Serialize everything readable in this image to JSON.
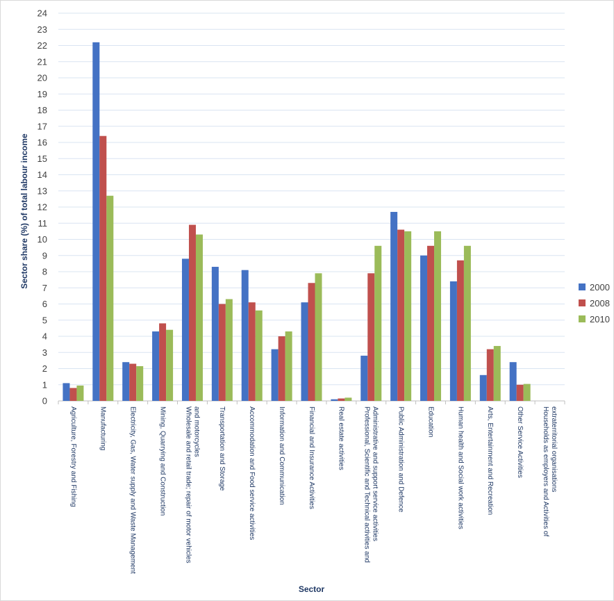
{
  "chart_data": {
    "type": "bar",
    "title": "",
    "xlabel": "Sector",
    "ylabel": "Sector share (%) of total labour income",
    "ylim": [
      0,
      24
    ],
    "yticks": [
      0,
      1,
      2,
      3,
      4,
      5,
      6,
      7,
      8,
      9,
      10,
      11,
      12,
      13,
      14,
      15,
      16,
      17,
      18,
      19,
      20,
      21,
      22,
      23,
      24
    ],
    "grid": true,
    "legend_position": "right",
    "categories": [
      "Agriculture, Forestry and Fishing",
      "Manufacturing",
      "Electricity, Gas, Water supply and Waste Management",
      "Mining, Quarrying and Construction",
      "Wholesale and retail trade; repair of motor vehicles and motorcycles",
      "Transportation and Storage",
      "Accommodation and Food service activities",
      "Information and Communication",
      "Financial and Insurance Activities",
      "Real estate activities",
      "Professional, Scientific and Technical activities and Administrative and support service activities",
      "Public Administration and Defence",
      "Education",
      "Human health and Social work activities",
      "Arts, Entertainment and Recreation",
      "Other Service Activities",
      "Households as employers and Activities of extraterritorial organisations"
    ],
    "category_lines": [
      [
        "Agriculture, Forestry and Fishing"
      ],
      [
        "Manufacturing"
      ],
      [
        "Electricity, Gas, Water supply and Waste Management"
      ],
      [
        "Mining, Quarrying and Construction"
      ],
      [
        "Wholesale and retail trade; repair of motor vehicles",
        "and motorcycles"
      ],
      [
        "Transportation and Storage"
      ],
      [
        "Accommodation and Food service activities"
      ],
      [
        "Information and Communication"
      ],
      [
        "Financial and Insurance Activities"
      ],
      [
        "Real estate activities"
      ],
      [
        "Professional, Scientific and Technical activities and",
        "Administrative and support service activities"
      ],
      [
        "Public Administration and Defence"
      ],
      [
        "Education"
      ],
      [
        "Human health and Social work activities"
      ],
      [
        "Arts, Entertainment and Recreation"
      ],
      [
        "Other Service Activities"
      ],
      [
        "Households as employers and Activities of",
        "extraterritorial organisations"
      ]
    ],
    "series": [
      {
        "name": "2000",
        "color": "#4472C4",
        "values": [
          1.1,
          22.2,
          2.4,
          4.3,
          8.8,
          8.3,
          8.1,
          3.2,
          6.1,
          0.1,
          2.8,
          11.7,
          9.0,
          7.4,
          1.6,
          2.4,
          0.0
        ]
      },
      {
        "name": "2008",
        "color": "#C0504D",
        "values": [
          0.8,
          16.4,
          2.3,
          4.8,
          10.9,
          6.0,
          6.1,
          4.0,
          7.3,
          0.15,
          7.9,
          10.6,
          9.6,
          8.7,
          3.2,
          1.0,
          0.0
        ]
      },
      {
        "name": "2010",
        "color": "#9BBB59",
        "values": [
          0.95,
          12.7,
          2.15,
          4.4,
          10.3,
          6.3,
          5.6,
          4.3,
          7.9,
          0.2,
          9.6,
          10.5,
          10.5,
          9.6,
          3.4,
          1.05,
          0.0
        ]
      }
    ]
  }
}
